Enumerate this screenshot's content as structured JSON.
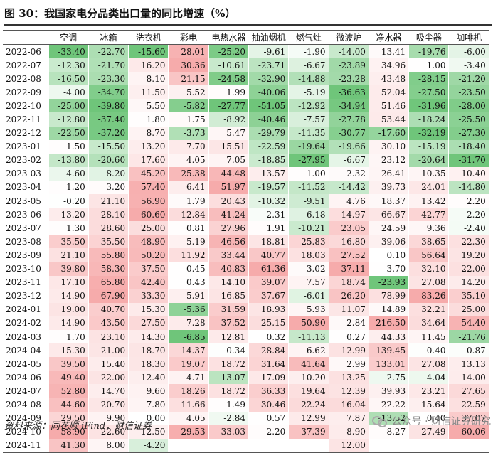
{
  "title": "图 30：我国家电分品类出口量的同比增速（%）",
  "header": [
    "",
    "空调",
    "冰箱",
    "洗衣机",
    "彩电",
    "电热水器",
    "抽油烟机",
    "燃气灶",
    "微波炉",
    "净水器",
    "吸尘器",
    "咖啡机"
  ],
  "rows": [
    {
      "date": "2022-06",
      "values": [
        "-33.40",
        "-22.70",
        "-15.60",
        "28.01",
        "-25.20",
        "-9.61",
        "-1.90",
        "-14.00",
        "13.41",
        "-19.76",
        "-6.00"
      ]
    },
    {
      "date": "2022-07",
      "values": [
        "-12.30",
        "-21.70",
        "16.20",
        "30.36",
        "-10.61",
        "-23.71",
        "-6.67",
        "-23.89",
        "34.96",
        "1.00",
        "-3.40"
      ]
    },
    {
      "date": "2022-08",
      "values": [
        "-16.50",
        "-23.30",
        "8.10",
        "21.15",
        "-24.58",
        "-32.90",
        "-14.88",
        "-23.28",
        "43.48",
        "-28.15",
        "-21.20"
      ]
    },
    {
      "date": "2022-09",
      "values": [
        "-4.00",
        "-34.70",
        "11.50",
        "5.52",
        "1.99",
        "-40.06",
        "-5.19",
        "-36.63",
        "52.04",
        "-27.50",
        "-23.50"
      ]
    },
    {
      "date": "2022-10",
      "values": [
        "-25.00",
        "-39.80",
        "5.50",
        "-5.82",
        "-27.77",
        "-51.05",
        "-12.92",
        "-34.94",
        "51.46",
        "-31.96",
        "-28.00"
      ]
    },
    {
      "date": "2022-11",
      "values": [
        "-12.80",
        "-37.40",
        "1.80",
        "1.75",
        "-8.92",
        "-40.46",
        "-7.57",
        "-27.78",
        "53.44",
        "-18.24",
        "-25.50"
      ]
    },
    {
      "date": "2022-12",
      "values": [
        "-22.50",
        "-37.20",
        "8.70",
        "-3.73",
        "5.47",
        "-29.79",
        "-11.35",
        "-30.77",
        "-17.60",
        "-32.19",
        "-27.30"
      ]
    },
    {
      "date": "2023-01",
      "values": [
        "1.50",
        "-15.50",
        "13.20",
        "7.70",
        "15.51",
        "-22.59",
        "-19.64",
        "-19.66",
        "30.10",
        "-15.19",
        "-18.40"
      ]
    },
    {
      "date": "2023-02",
      "values": [
        "-13.80",
        "-20.60",
        "17.60",
        "4.05",
        "7.05",
        "-18.85",
        "-27.95",
        "-6.67",
        "23.12",
        "-20.64",
        "-31.70"
      ]
    },
    {
      "date": "2023-03",
      "values": [
        "-4.60",
        "-8.20",
        "45.20",
        "25.38",
        "44.48",
        "13.57",
        "1.00",
        "2.32",
        "26.41",
        "10.35",
        "10.40"
      ]
    },
    {
      "date": "2023-04",
      "values": [
        "1.20",
        "3.20",
        "57.40",
        "6.41",
        "51.97",
        "-19.57",
        "-11.52",
        "-14.42",
        "39.73",
        "24.01",
        "-14.80"
      ]
    },
    {
      "date": "2023-05",
      "values": [
        "-0.20",
        "21.10",
        "56.90",
        "1.79",
        "20.43",
        "-10.32",
        "-9.51",
        "4.76",
        "18.37",
        "13.42",
        "2.20"
      ]
    },
    {
      "date": "2023-06",
      "values": [
        "13.20",
        "28.10",
        "60.60",
        "12.84",
        "41.24",
        "-2.31",
        "-6.18",
        "14.97",
        "66.67",
        "42.77",
        "-2.20"
      ]
    },
    {
      "date": "2023-07",
      "values": [
        "1.30",
        "28.60",
        "25.00",
        "0.81",
        "27.96",
        "1.91",
        "-10.21",
        "23.05",
        "24.59",
        "9.36",
        "-2.40"
      ]
    },
    {
      "date": "2023-08",
      "values": [
        "35.50",
        "35.50",
        "48.90",
        "5.19",
        "46.56",
        "18.81",
        "25.83",
        "16.80",
        "39.06",
        "38.65",
        "22.30"
      ]
    },
    {
      "date": "2023-09",
      "values": [
        "21.10",
        "55.80",
        "50.20",
        "11.92",
        "33.44",
        "40.77",
        "18.03",
        "27.52",
        "0.10",
        "56.64",
        "19.20"
      ]
    },
    {
      "date": "2023-10",
      "values": [
        "39.80",
        "58.30",
        "37.50",
        "0.45",
        "40.83",
        "61.36",
        "3.02",
        "37.11",
        "3.70",
        "32.10",
        "22.00"
      ]
    },
    {
      "date": "2023-11",
      "values": [
        "17.10",
        "65.80",
        "42.40",
        "0.43",
        "14.10",
        "39.07",
        "7.57",
        "18.74",
        "-23.93",
        "27.08",
        "14.20"
      ]
    },
    {
      "date": "2023-12",
      "values": [
        "14.90",
        "67.90",
        "33.30",
        "5.91",
        "16.85",
        "37.67",
        "-6.01",
        "26.20",
        "78.99",
        "83.26",
        "35.10"
      ]
    },
    {
      "date": "2024-01",
      "values": [
        "19.00",
        "40.70",
        "15.30",
        "-5.36",
        "31.59",
        "18.93",
        "5.93",
        "11.07",
        "14.89",
        "32.21",
        "25.00"
      ]
    },
    {
      "date": "2024-02",
      "values": [
        "14.90",
        "43.50",
        "27.50",
        "7.28",
        "37.52",
        "25.15",
        "50.90",
        "2.84",
        "216.50",
        "34.64",
        "54.40"
      ]
    },
    {
      "date": "2024-03",
      "values": [
        "1.70",
        "23.10",
        "14.30",
        "-6.85",
        "12.81",
        "0.32",
        "-11.13",
        "0.27",
        "44.33",
        "11.45",
        "-21.76"
      ]
    },
    {
      "date": "2024-04",
      "values": [
        "15.30",
        "21.00",
        "18.70",
        "14.37",
        "-0.34",
        "28.84",
        "6.62",
        "12.99",
        "139.45",
        "-0.40",
        "-0.87"
      ]
    },
    {
      "date": "2024-05",
      "values": [
        "39.50",
        "15.40",
        "18.30",
        "19.07",
        "18.72",
        "31.64",
        "41.64",
        "2.99",
        "133.01",
        "27.08",
        "13.13"
      ]
    },
    {
      "date": "2024-06",
      "values": [
        "49.40",
        "22.00",
        "12.40",
        "4.71",
        "-13.07",
        "17.09",
        "10.20",
        "13.25",
        "-2.75",
        "-4.04",
        "14.00"
      ]
    },
    {
      "date": "2024-07",
      "values": [
        "52.80",
        "14.70",
        "9.60",
        "18.26",
        "18.72",
        "36.33",
        "19.64",
        "12.39",
        "39.93",
        "23.21",
        "27.65"
      ]
    },
    {
      "date": "2024-08",
      "values": [
        "44.60",
        "20.70",
        "7.80",
        "11.66",
        "1.49",
        "30.46",
        "22.24",
        "16.04",
        "22.22",
        "15.64",
        "22.59"
      ]
    },
    {
      "date": "2024-09",
      "values": [
        "29.50",
        "9.90",
        "0.00",
        "4.05",
        "-2.84",
        "0.57",
        "12.99",
        "7.87",
        "-13.52",
        "0.40",
        "37.07"
      ]
    },
    {
      "date": "2024-10",
      "values": [
        "58.90",
        "22.60",
        "12.50",
        "29.53",
        "33.03",
        "2.20",
        "37.39",
        "8.90",
        "8.27",
        "27.49",
        "60.06"
      ]
    },
    {
      "date": "2024-11",
      "values": [
        "41.30",
        "8.00",
        "-4.20",
        "",
        "",
        "",
        "",
        "12.00",
        "",
        "",
        ""
      ]
    }
  ],
  "colors": {
    "pos": "#f6a7a7",
    "neg": "#5fbf6b",
    "neutral": "#ffffff"
  },
  "footer": "资料来源：同花顺 iFind，财信证券",
  "watermark": "公众号 · 财信证券研究"
}
